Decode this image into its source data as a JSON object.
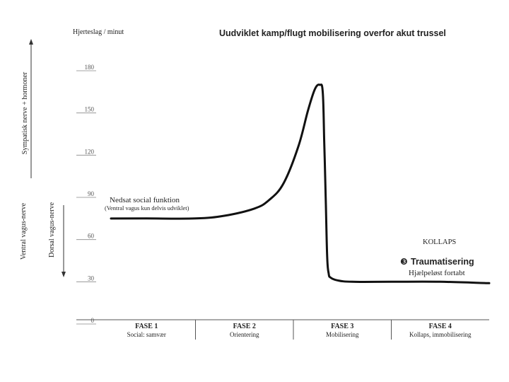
{
  "chart_data": {
    "type": "line",
    "title": "Uudviklet kamp/flugt mobilisering overfor akut trussel",
    "ylabel": "Hjerteslag / minut",
    "ylim": [
      0,
      180
    ],
    "yticks": [
      "0",
      "30",
      "60",
      "90",
      "120",
      "150",
      "180"
    ],
    "grid": false,
    "series": [
      {
        "x": [
          0.0,
          0.5,
          1.0,
          1.3,
          1.6,
          1.75,
          1.9,
          2.05,
          2.15,
          2.22,
          2.27,
          2.3,
          2.315,
          2.33,
          2.345,
          2.36,
          2.38,
          2.45,
          2.6,
          3.0,
          3.5,
          4.0
        ],
        "values": [
          75,
          75,
          75,
          77,
          82,
          88,
          100,
          126,
          152,
          167,
          170,
          165,
          130,
          90,
          48,
          36,
          33,
          31,
          30,
          30,
          30,
          29
        ]
      }
    ],
    "phases": [
      {
        "label": "FASE 1",
        "sub": "Social: samvær"
      },
      {
        "label": "FASE 2",
        "sub": "Orientering"
      },
      {
        "label": "FASE 3",
        "sub": "Mobilisering"
      },
      {
        "label": "FASE 4",
        "sub": "Kollaps, immobilisering"
      }
    ],
    "annotations": {
      "social_title": "Nedsat social funktion",
      "social_sub": "(Ventral vagus kun delvis udviklet)",
      "collapse": "KOLLAPS",
      "trauma_marker": "❸",
      "trauma": "Traumatisering",
      "helpless": "Hjælpeløst fortabt"
    },
    "side_labels": {
      "sympathetic": "Sympatisk nerve + hormoner",
      "ventral": "Ventral vagus-nerve",
      "dorsal": "Dorsal vagus-nerve"
    }
  }
}
